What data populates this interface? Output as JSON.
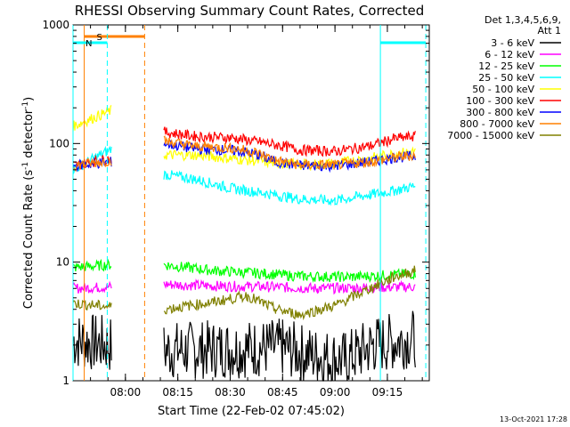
{
  "chart_data": {
    "type": "line",
    "title": "RHESSI Observing Summary Count Rates, Corrected",
    "xlabel": "Start Time (22-Feb-02 07:45:02)",
    "ylabel_prefix": "Corrected Count Rate (s",
    "ylabel_sup": "-1",
    "ylabel_mid": " detector",
    "ylabel_sup2": "-1",
    "ylabel_suffix": ")",
    "y_scale": "log",
    "ylim": [
      1,
      1000
    ],
    "xlim_minutes": [
      0,
      102
    ],
    "x_ticks": [
      {
        "minute": 15,
        "label": "08:00"
      },
      {
        "minute": 30,
        "label": "08:15"
      },
      {
        "minute": 45,
        "label": "08:30"
      },
      {
        "minute": 60,
        "label": "08:45"
      },
      {
        "minute": 75,
        "label": "09:00"
      },
      {
        "minute": 90,
        "label": "09:15"
      }
    ],
    "y_ticks": [
      {
        "value": 1,
        "label": "1"
      },
      {
        "value": 10,
        "label": "10"
      },
      {
        "value": 100,
        "label": "100"
      },
      {
        "value": 1000,
        "label": "1000"
      }
    ],
    "legend_header": [
      "Det 1,3,4,5,6,9,",
      "Att 1"
    ],
    "series": [
      {
        "name": "3 - 6 keV",
        "color": "#000000",
        "segments": [
          [
            [
              0,
              2.2
            ],
            [
              11,
              2.0
            ]
          ],
          [
            [
              26,
              1.8
            ],
            [
              60,
              1.9
            ],
            [
              70,
              1.6
            ],
            [
              78,
              1.5
            ],
            [
              86,
              2.0
            ],
            [
              98,
              2.3
            ]
          ]
        ]
      },
      {
        "name": "6 - 12 keV",
        "color": "#ff00ff",
        "segments": [
          [
            [
              0,
              6.0
            ],
            [
              11,
              6.2
            ]
          ],
          [
            [
              26,
              6.5
            ],
            [
              40,
              6.3
            ],
            [
              55,
              6.2
            ],
            [
              70,
              6.0
            ],
            [
              85,
              6.1
            ],
            [
              98,
              6.2
            ]
          ]
        ]
      },
      {
        "name": "12 - 25 keV",
        "color": "#00ff00",
        "segments": [
          [
            [
              0,
              9.0
            ],
            [
              11,
              9.5
            ]
          ],
          [
            [
              26,
              9.5
            ],
            [
              40,
              8.5
            ],
            [
              55,
              8.0
            ],
            [
              65,
              7.6
            ],
            [
              80,
              7.5
            ],
            [
              98,
              8.0
            ]
          ]
        ]
      },
      {
        "name": "25 - 50 keV",
        "color": "#00ffff",
        "segments": [
          [
            [
              0,
              60
            ],
            [
              11,
              90
            ]
          ],
          [
            [
              26,
              55
            ],
            [
              35,
              50
            ],
            [
              45,
              42
            ],
            [
              55,
              38
            ],
            [
              65,
              34
            ],
            [
              75,
              33
            ],
            [
              85,
              37
            ],
            [
              92,
              40
            ],
            [
              98,
              44
            ]
          ]
        ]
      },
      {
        "name": "50 - 100 keV",
        "color": "#ffff00",
        "segments": [
          [
            [
              0,
              140
            ],
            [
              11,
              190
            ]
          ],
          [
            [
              26,
              80
            ],
            [
              35,
              80
            ],
            [
              45,
              75
            ],
            [
              55,
              70
            ],
            [
              65,
              66
            ],
            [
              75,
              68
            ],
            [
              85,
              75
            ],
            [
              92,
              82
            ],
            [
              98,
              86
            ]
          ]
        ]
      },
      {
        "name": "100 - 300 keV",
        "color": "#ff0000",
        "segments": [
          [
            [
              0,
              65
            ],
            [
              11,
              75
            ]
          ],
          [
            [
              26,
              125
            ],
            [
              35,
              115
            ],
            [
              45,
              112
            ],
            [
              52,
              105
            ],
            [
              60,
              95
            ],
            [
              65,
              88
            ],
            [
              75,
              86
            ],
            [
              85,
              95
            ],
            [
              92,
              110
            ],
            [
              98,
              115
            ]
          ]
        ]
      },
      {
        "name": "300 - 800 keV",
        "color": "#0000ff",
        "segments": [
          [
            [
              0,
              65
            ],
            [
              11,
              70
            ]
          ],
          [
            [
              26,
              100
            ],
            [
              35,
              90
            ],
            [
              45,
              88
            ],
            [
              52,
              82
            ],
            [
              58,
              70
            ],
            [
              65,
              65
            ],
            [
              75,
              65
            ],
            [
              85,
              70
            ],
            [
              92,
              76
            ],
            [
              98,
              78
            ]
          ]
        ]
      },
      {
        "name": "800 - 7000 keV",
        "color": "#ff8000",
        "segments": [
          [
            [
              0,
              65
            ],
            [
              11,
              72
            ]
          ],
          [
            [
              26,
              105
            ],
            [
              35,
              95
            ],
            [
              45,
              92
            ],
            [
              52,
              85
            ],
            [
              58,
              72
            ],
            [
              65,
              66
            ],
            [
              75,
              66
            ],
            [
              85,
              70
            ],
            [
              92,
              76
            ],
            [
              98,
              80
            ]
          ]
        ]
      },
      {
        "name": "7000 - 15000 keV",
        "color": "#808000",
        "segments": [
          [
            [
              0,
              4.5
            ],
            [
              11,
              4.2
            ]
          ],
          [
            [
              26,
              4.0
            ],
            [
              40,
              4.6
            ],
            [
              50,
              5.2
            ],
            [
              58,
              4.0
            ],
            [
              65,
              3.6
            ],
            [
              75,
              4.3
            ],
            [
              85,
              6.0
            ],
            [
              92,
              7.5
            ],
            [
              98,
              8.5
            ]
          ]
        ]
      }
    ],
    "flags": [
      {
        "label": "S",
        "color": "#ff8000",
        "start_minute": 3.2,
        "end_minute": 20.5
      },
      {
        "label": "N",
        "color": "#00ffff",
        "start_minute": 0,
        "end_minute": 9.8
      }
    ],
    "footer_date": "13-Oct-2021 17:28"
  }
}
